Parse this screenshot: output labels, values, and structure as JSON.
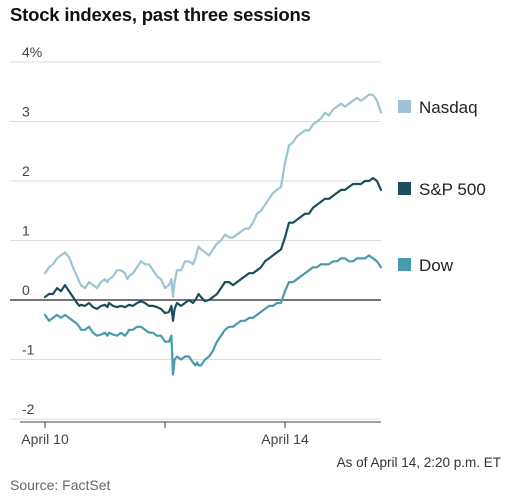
{
  "title": "Stock indexes, past three sessions",
  "note": "As of April 14, 2:20 p.m. ET",
  "source": "Source: FactSet",
  "chart_data": {
    "type": "line",
    "ylim": [
      -2,
      4
    ],
    "yticks": [
      4,
      3,
      2,
      1,
      0,
      -1,
      -2
    ],
    "ytick_labels": [
      "4%",
      "3",
      "2",
      "1",
      "0",
      "-1",
      "-2"
    ],
    "x": [
      0,
      0.05,
      0.1,
      0.15,
      0.2,
      0.25,
      0.3,
      0.35,
      0.4,
      0.43,
      0.45,
      0.5,
      0.55,
      0.6,
      0.65,
      0.7,
      0.75,
      0.78,
      0.8,
      0.85,
      0.9,
      0.95,
      1.0,
      1.03,
      1.05,
      1.1,
      1.15,
      1.2,
      1.25,
      1.3,
      1.35,
      1.4,
      1.45,
      1.5,
      1.55,
      1.58,
      1.6,
      1.62,
      1.65,
      1.7,
      1.75,
      1.8,
      1.85,
      1.88,
      1.9,
      1.92,
      1.95,
      2.0,
      2.05,
      2.1,
      2.15,
      2.2,
      2.25,
      2.3,
      2.35,
      2.4,
      2.45,
      2.5,
      2.55,
      2.6,
      2.65,
      2.7,
      2.75,
      2.8,
      2.85,
      2.9,
      2.95,
      3.0,
      3.05,
      3.1,
      3.15,
      3.2,
      3.25,
      3.3,
      3.35,
      3.4,
      3.45,
      3.5,
      3.55,
      3.6,
      3.65,
      3.7,
      3.75,
      3.8,
      3.85,
      3.9,
      3.95,
      4.0,
      4.05,
      4.1,
      4.15,
      4.2
    ],
    "x_tick_positions": [
      0,
      1.5,
      3.0
    ],
    "x_tick_labels": [
      "April 10",
      "",
      "April 14"
    ],
    "x_range": [
      0,
      4.2
    ],
    "grid": true,
    "legend": "right",
    "series": [
      {
        "name": "Nasdaq",
        "color": "#9ec3d4",
        "values": [
          0.45,
          0.55,
          0.6,
          0.7,
          0.75,
          0.8,
          0.72,
          0.55,
          0.4,
          0.3,
          0.25,
          0.2,
          0.3,
          0.25,
          0.2,
          0.3,
          0.35,
          0.3,
          0.35,
          0.4,
          0.5,
          0.5,
          0.45,
          0.35,
          0.4,
          0.45,
          0.55,
          0.65,
          0.6,
          0.6,
          0.5,
          0.4,
          0.35,
          0.2,
          0.25,
          0.35,
          0.05,
          0.3,
          0.5,
          0.5,
          0.65,
          0.65,
          0.6,
          0.7,
          0.8,
          0.9,
          0.85,
          0.8,
          0.75,
          0.85,
          0.95,
          1.0,
          1.1,
          1.05,
          1.05,
          1.1,
          1.15,
          1.2,
          1.2,
          1.3,
          1.45,
          1.5,
          1.6,
          1.7,
          1.8,
          1.85,
          1.9,
          2.3,
          2.6,
          2.65,
          2.75,
          2.8,
          2.85,
          2.85,
          2.95,
          3.0,
          3.05,
          3.15,
          3.1,
          3.2,
          3.25,
          3.3,
          3.25,
          3.3,
          3.35,
          3.4,
          3.35,
          3.4,
          3.45,
          3.45,
          3.35,
          3.15
        ]
      },
      {
        "name": "S&P 500",
        "color": "#1b4e5c",
        "values": [
          0.05,
          0.1,
          0.1,
          0.2,
          0.15,
          0.25,
          0.15,
          0.05,
          -0.05,
          -0.1,
          -0.08,
          -0.1,
          -0.05,
          -0.12,
          -0.15,
          -0.1,
          -0.08,
          -0.12,
          -0.05,
          -0.1,
          -0.12,
          -0.1,
          -0.12,
          -0.1,
          -0.08,
          -0.1,
          -0.05,
          -0.02,
          -0.05,
          -0.1,
          -0.1,
          -0.12,
          -0.15,
          -0.22,
          -0.2,
          -0.1,
          -0.35,
          -0.15,
          -0.05,
          -0.1,
          -0.05,
          0.0,
          -0.05,
          0.0,
          0.05,
          0.1,
          0.05,
          -0.02,
          0.0,
          0.05,
          0.1,
          0.2,
          0.3,
          0.3,
          0.25,
          0.3,
          0.35,
          0.4,
          0.45,
          0.45,
          0.5,
          0.55,
          0.65,
          0.7,
          0.75,
          0.8,
          0.85,
          1.05,
          1.3,
          1.3,
          1.35,
          1.4,
          1.45,
          1.45,
          1.55,
          1.6,
          1.65,
          1.7,
          1.7,
          1.75,
          1.8,
          1.85,
          1.85,
          1.9,
          1.95,
          1.95,
          1.95,
          2.0,
          2.0,
          2.05,
          2.0,
          1.85
        ]
      },
      {
        "name": "Dow",
        "color": "#4a99ac",
        "values": [
          -0.25,
          -0.35,
          -0.3,
          -0.25,
          -0.3,
          -0.25,
          -0.3,
          -0.35,
          -0.4,
          -0.45,
          -0.5,
          -0.5,
          -0.45,
          -0.55,
          -0.6,
          -0.58,
          -0.55,
          -0.6,
          -0.55,
          -0.58,
          -0.6,
          -0.55,
          -0.6,
          -0.55,
          -0.5,
          -0.5,
          -0.45,
          -0.45,
          -0.5,
          -0.55,
          -0.55,
          -0.6,
          -0.6,
          -0.7,
          -0.7,
          -0.6,
          -1.25,
          -1.0,
          -0.95,
          -1.0,
          -0.95,
          -0.95,
          -1.05,
          -1.1,
          -1.05,
          -1.1,
          -1.1,
          -1.0,
          -0.95,
          -0.85,
          -0.7,
          -0.6,
          -0.5,
          -0.45,
          -0.45,
          -0.4,
          -0.35,
          -0.35,
          -0.3,
          -0.3,
          -0.25,
          -0.2,
          -0.15,
          -0.1,
          -0.1,
          -0.05,
          -0.05,
          0.15,
          0.3,
          0.3,
          0.35,
          0.4,
          0.45,
          0.5,
          0.55,
          0.55,
          0.6,
          0.6,
          0.6,
          0.65,
          0.65,
          0.7,
          0.7,
          0.65,
          0.65,
          0.7,
          0.7,
          0.7,
          0.75,
          0.7,
          0.65,
          0.55
        ]
      }
    ]
  }
}
